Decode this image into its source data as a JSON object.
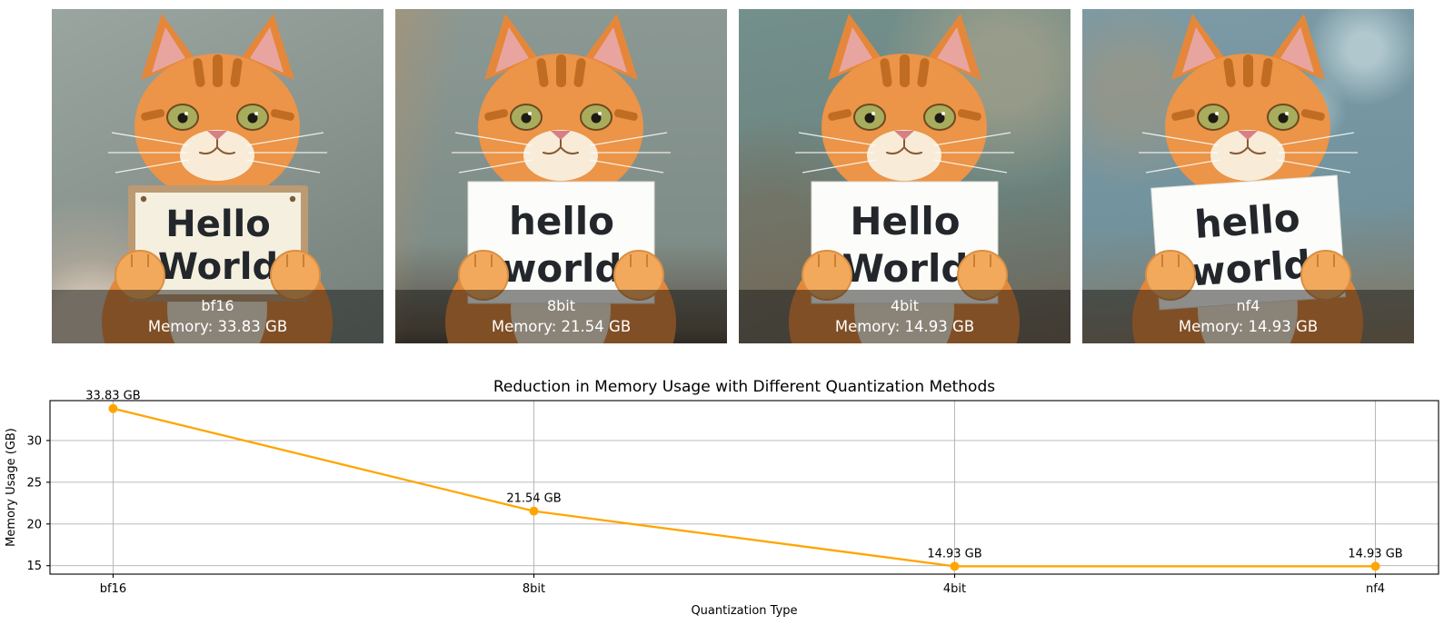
{
  "figure": {
    "panels": [
      {
        "name": "bf16",
        "caption_label": "bf16",
        "caption_memory": "Memory: 33.83 GB",
        "sign_line1": "Hello",
        "sign_line2": "World"
      },
      {
        "name": "8bit",
        "caption_label": "8bit",
        "caption_memory": "Memory: 21.54 GB",
        "sign_line1": "hello",
        "sign_line2": "world"
      },
      {
        "name": "4bit",
        "caption_label": "4bit",
        "caption_memory": "Memory: 14.93 GB",
        "sign_line1": "Hello",
        "sign_line2": "World"
      },
      {
        "name": "nf4",
        "caption_label": "nf4",
        "caption_memory": "Memory: 14.93 GB",
        "sign_line1": "hello",
        "sign_line2": "world"
      }
    ]
  },
  "chart_data": {
    "type": "line",
    "title": "Reduction in Memory Usage with Different Quantization Methods",
    "xlabel": "Quantization Type",
    "ylabel": "Memory Usage (GB)",
    "categories": [
      "bf16",
      "8bit",
      "4bit",
      "nf4"
    ],
    "series": [
      {
        "name": "memory_usage_gb",
        "values": [
          33.83,
          21.54,
          14.93,
          14.93
        ]
      }
    ],
    "point_labels": [
      "33.83 GB",
      "21.54 GB",
      "14.93 GB",
      "14.93 GB"
    ],
    "yticks": [
      15,
      20,
      25,
      30
    ],
    "ylim": [
      13.99,
      34.78
    ],
    "grid": true,
    "legend": "none",
    "line_color": "#ffa500",
    "marker": "circle"
  },
  "colors": {
    "chart_line": "#ffa500",
    "grid_line": "#b0b0b0",
    "axis": "#000000",
    "caption_overlay": "rgba(18,16,14,0.47)",
    "caption_text": "#ffffff",
    "sign_text": "#23272b"
  }
}
